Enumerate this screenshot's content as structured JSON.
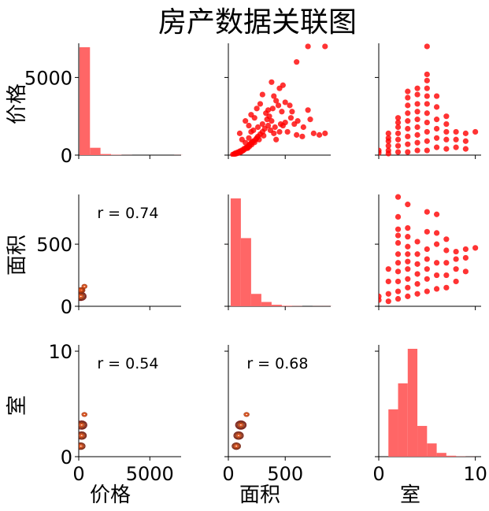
{
  "chart_data": {
    "type": "scatter",
    "title": "房产数据关联图",
    "variables": [
      "价格",
      "面积",
      "室"
    ],
    "ranges": [
      [
        0,
        7200
      ],
      [
        0,
        900
      ],
      [
        0,
        10.6
      ]
    ],
    "x_ticks": [
      [
        0,
        5000
      ],
      [
        0,
        500
      ],
      [
        0,
        10
      ]
    ],
    "y_ticks": [
      [
        0,
        5000
      ],
      [
        0,
        500
      ],
      [
        0,
        10
      ]
    ],
    "color": "#ff0000",
    "hist_color": "#ff6666",
    "diagonal": [
      {
        "variable": "价格",
        "bin_edges": [
          50,
          790,
          1530,
          2270,
          3010,
          3750,
          4490,
          5230,
          5970,
          6710,
          7450
        ],
        "counts": [
          1000,
          68,
          10,
          3,
          1,
          0,
          0,
          0,
          0,
          1
        ]
      },
      {
        "variable": "面积",
        "bin_edges": [
          20,
          110,
          200,
          290,
          380,
          470,
          560,
          650,
          740,
          830,
          920
        ],
        "counts": [
          1000,
          632,
          115,
          40,
          14,
          5,
          2,
          0,
          1,
          1
        ]
      },
      {
        "variable": "室",
        "bin_edges": [
          1,
          2,
          3,
          4,
          5,
          6,
          7,
          8,
          9,
          10
        ],
        "counts": [
          1000,
          1550,
          2280,
          650,
          280,
          80,
          20,
          5,
          2
        ]
      }
    ],
    "upper": [
      {
        "x": "面积",
        "y": "价格",
        "points": [
          [
            60,
            120
          ],
          [
            80,
            180
          ],
          [
            100,
            250
          ],
          [
            120,
            320
          ],
          [
            140,
            420
          ],
          [
            160,
            500
          ],
          [
            180,
            620
          ],
          [
            200,
            780
          ],
          [
            220,
            900
          ],
          [
            250,
            1100
          ],
          [
            280,
            1350
          ],
          [
            300,
            1500
          ],
          [
            320,
            1700
          ],
          [
            350,
            1900
          ],
          [
            150,
            2200
          ],
          [
            200,
            2600
          ],
          [
            250,
            3000
          ],
          [
            280,
            3300
          ],
          [
            180,
            1900
          ],
          [
            230,
            2400
          ],
          [
            330,
            2700
          ],
          [
            380,
            2200
          ],
          [
            400,
            1400
          ],
          [
            420,
            1000
          ],
          [
            450,
            1500
          ],
          [
            480,
            1900
          ],
          [
            500,
            2100
          ],
          [
            520,
            1500
          ],
          [
            550,
            2400
          ],
          [
            580,
            2000
          ],
          [
            600,
            1300
          ],
          [
            650,
            1200
          ],
          [
            700,
            2900
          ],
          [
            750,
            1400
          ],
          [
            800,
            1300
          ],
          [
            850,
            1400
          ],
          [
            100,
            1400
          ],
          [
            120,
            1000
          ],
          [
            200,
            1500
          ],
          [
            400,
            3800
          ],
          [
            450,
            4300
          ],
          [
            480,
            4500
          ],
          [
            500,
            3400
          ],
          [
            380,
            4700
          ],
          [
            420,
            3500
          ],
          [
            350,
            2900
          ],
          [
            300,
            3900
          ],
          [
            600,
            6000
          ],
          [
            700,
            7000
          ],
          [
            850,
            7000
          ],
          [
            50,
            60
          ],
          [
            70,
            100
          ],
          [
            90,
            150
          ],
          [
            110,
            200
          ],
          [
            130,
            300
          ],
          [
            170,
            450
          ],
          [
            190,
            700
          ],
          [
            210,
            850
          ],
          [
            240,
            1000
          ],
          [
            260,
            1200
          ],
          [
            150,
            800
          ],
          [
            180,
            1100
          ],
          [
            220,
            1600
          ],
          [
            260,
            1800
          ],
          [
            300,
            2000
          ],
          [
            340,
            2300
          ],
          [
            360,
            2500
          ],
          [
            390,
            3000
          ],
          [
            440,
            3200
          ],
          [
            470,
            2800
          ],
          [
            540,
            3200
          ],
          [
            560,
            2800
          ],
          [
            610,
            2200
          ],
          [
            660,
            1800
          ],
          [
            720,
            2300
          ],
          [
            40,
            40
          ],
          [
            65,
            90
          ],
          [
            85,
            130
          ],
          [
            105,
            220
          ],
          [
            125,
            280
          ],
          [
            145,
            380
          ],
          [
            165,
            480
          ],
          [
            185,
            560
          ],
          [
            205,
            680
          ],
          [
            230,
            820
          ],
          [
            270,
            1000
          ],
          [
            310,
            1250
          ],
          [
            370,
            1600
          ],
          [
            410,
            1800
          ],
          [
            460,
            2000
          ]
        ]
      },
      {
        "x": "室",
        "y": "价格",
        "points": [
          [
            0,
            150
          ],
          [
            0,
            300
          ],
          [
            1,
            100
          ],
          [
            1,
            300
          ],
          [
            1,
            600
          ],
          [
            1,
            900
          ],
          [
            1,
            1100
          ],
          [
            1,
            1400
          ],
          [
            2,
            200
          ],
          [
            2,
            600
          ],
          [
            2,
            1000
          ],
          [
            2,
            1400
          ],
          [
            2,
            1800
          ],
          [
            2,
            2100
          ],
          [
            2,
            2400
          ],
          [
            3,
            200
          ],
          [
            3,
            700
          ],
          [
            3,
            1200
          ],
          [
            3,
            1700
          ],
          [
            3,
            2200
          ],
          [
            3,
            2700
          ],
          [
            3,
            3200
          ],
          [
            3,
            3700
          ],
          [
            3,
            4100
          ],
          [
            4,
            300
          ],
          [
            4,
            800
          ],
          [
            4,
            1300
          ],
          [
            4,
            1800
          ],
          [
            4,
            2300
          ],
          [
            4,
            2800
          ],
          [
            4,
            3300
          ],
          [
            4,
            3900
          ],
          [
            4,
            4300
          ],
          [
            5,
            300
          ],
          [
            5,
            900
          ],
          [
            5,
            1500
          ],
          [
            5,
            2100
          ],
          [
            5,
            2700
          ],
          [
            5,
            3300
          ],
          [
            5,
            3800
          ],
          [
            5,
            4300
          ],
          [
            5,
            4800
          ],
          [
            5,
            5200
          ],
          [
            5,
            7000
          ],
          [
            6,
            500
          ],
          [
            6,
            1100
          ],
          [
            6,
            1700
          ],
          [
            6,
            2300
          ],
          [
            6,
            3100
          ],
          [
            6,
            3800
          ],
          [
            7,
            400
          ],
          [
            7,
            1000
          ],
          [
            7,
            1500
          ],
          [
            7,
            2000
          ],
          [
            7,
            2500
          ],
          [
            8,
            500
          ],
          [
            8,
            1000
          ],
          [
            8,
            1500
          ],
          [
            9,
            400
          ],
          [
            9,
            900
          ],
          [
            9,
            1400
          ],
          [
            10,
            1500
          ]
        ]
      },
      {
        "x": "室",
        "y": "面积",
        "points": [
          [
            0,
            50
          ],
          [
            0,
            80
          ],
          [
            1,
            40
          ],
          [
            1,
            100
          ],
          [
            1,
            200
          ],
          [
            1,
            300
          ],
          [
            2,
            60
          ],
          [
            2,
            120
          ],
          [
            2,
            200
          ],
          [
            2,
            280
          ],
          [
            2,
            350
          ],
          [
            2,
            420
          ],
          [
            2,
            510
          ],
          [
            2,
            570
          ],
          [
            2,
            620
          ],
          [
            2,
            720
          ],
          [
            2,
            880
          ],
          [
            3,
            80
          ],
          [
            3,
            150
          ],
          [
            3,
            220
          ],
          [
            3,
            300
          ],
          [
            3,
            360
          ],
          [
            3,
            420
          ],
          [
            3,
            480
          ],
          [
            3,
            560
          ],
          [
            3,
            630
          ],
          [
            3,
            820
          ],
          [
            4,
            100
          ],
          [
            4,
            180
          ],
          [
            4,
            260
          ],
          [
            4,
            340
          ],
          [
            4,
            420
          ],
          [
            4,
            520
          ],
          [
            5,
            120
          ],
          [
            5,
            220
          ],
          [
            5,
            300
          ],
          [
            5,
            380
          ],
          [
            5,
            460
          ],
          [
            5,
            600
          ],
          [
            5,
            760
          ],
          [
            6,
            140
          ],
          [
            6,
            250
          ],
          [
            6,
            350
          ],
          [
            6,
            500
          ],
          [
            6,
            590
          ],
          [
            6,
            740
          ],
          [
            7,
            150
          ],
          [
            7,
            250
          ],
          [
            7,
            350
          ],
          [
            7,
            450
          ],
          [
            7,
            540
          ],
          [
            8,
            200
          ],
          [
            8,
            300
          ],
          [
            8,
            380
          ],
          [
            8,
            440
          ],
          [
            9,
            280
          ],
          [
            9,
            390
          ],
          [
            9,
            460
          ],
          [
            10,
            470
          ]
        ]
      }
    ],
    "lower": [
      {
        "x": "价格",
        "y": "面积",
        "r_label": "r = 0.74",
        "kde": [
          [
            150,
            80,
            9
          ],
          [
            220,
            130,
            5
          ],
          [
            150,
            130,
            5
          ],
          [
            400,
            160,
            4
          ]
        ]
      },
      {
        "x": "价格",
        "y": "室",
        "r_label": "r = 0.54",
        "kde": [
          [
            200,
            3,
            9
          ],
          [
            200,
            2,
            8
          ],
          [
            150,
            1,
            7
          ],
          [
            400,
            4,
            4
          ]
        ]
      },
      {
        "x": "面积",
        "y": "室",
        "r_label": "r = 0.68",
        "kde": [
          [
            110,
            3,
            9
          ],
          [
            90,
            2,
            8
          ],
          [
            70,
            1,
            7
          ],
          [
            160,
            4,
            4
          ]
        ]
      }
    ]
  }
}
